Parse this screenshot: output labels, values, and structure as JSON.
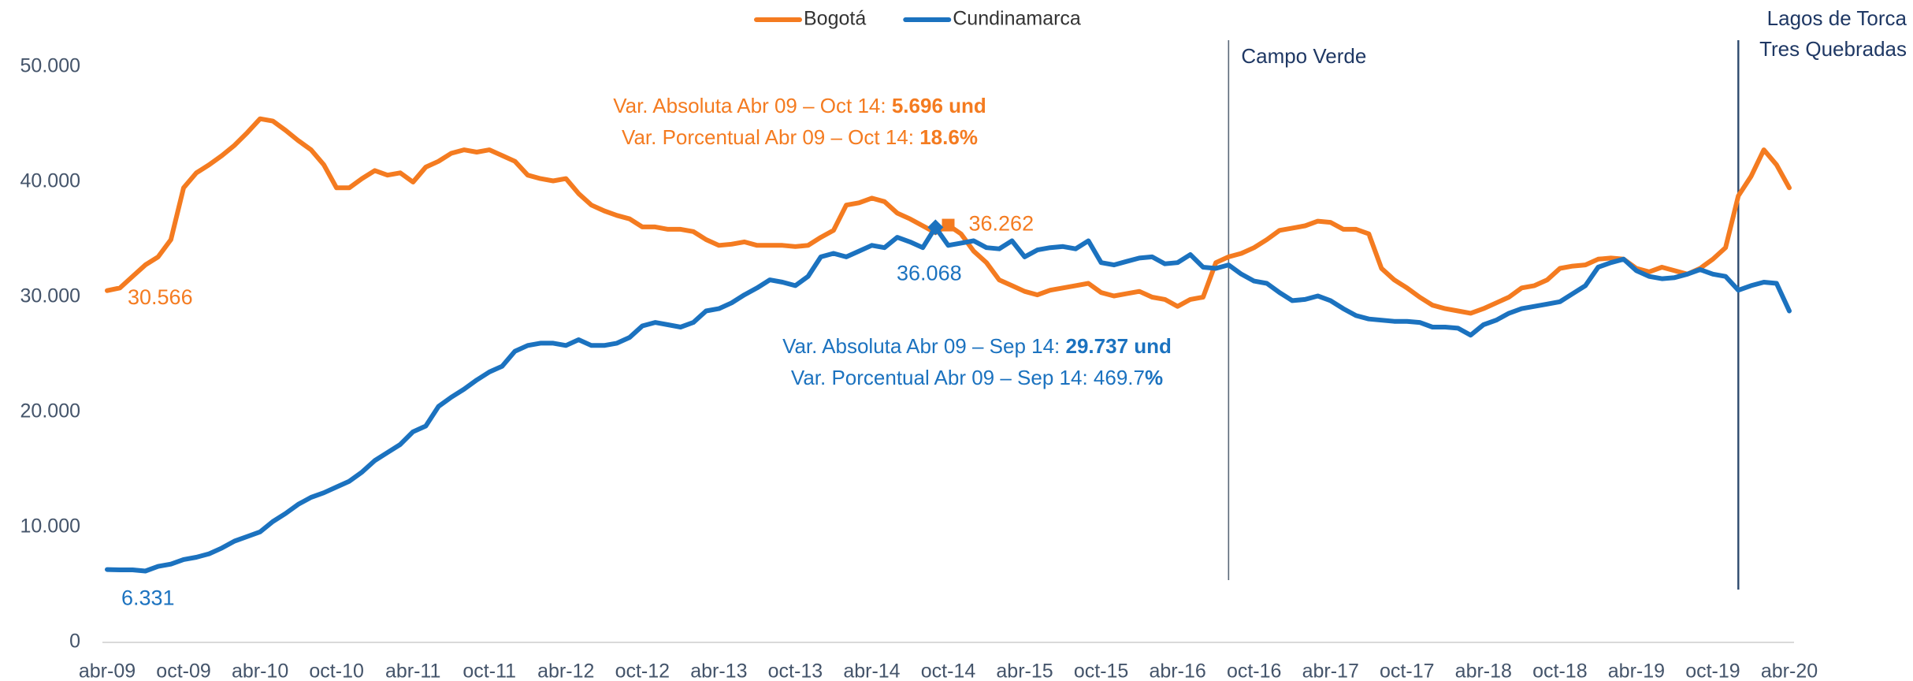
{
  "chart_data": {
    "type": "line",
    "categories": [
      "abr-09",
      null,
      null,
      null,
      null,
      null,
      "oct-09",
      null,
      null,
      null,
      null,
      null,
      "abr-10",
      null,
      null,
      null,
      null,
      null,
      "oct-10",
      null,
      null,
      null,
      null,
      null,
      "abr-11",
      null,
      null,
      null,
      null,
      null,
      "oct-11",
      null,
      null,
      null,
      null,
      null,
      "abr-12",
      null,
      null,
      null,
      null,
      null,
      "oct-12",
      null,
      null,
      null,
      null,
      null,
      "abr-13",
      null,
      null,
      null,
      null,
      null,
      "oct-13",
      null,
      null,
      null,
      null,
      null,
      "abr-14",
      null,
      null,
      null,
      null,
      null,
      "oct-14",
      null,
      null,
      null,
      null,
      null,
      "abr-15",
      null,
      null,
      null,
      null,
      null,
      "oct-15",
      null,
      null,
      null,
      null,
      null,
      "abr-16",
      null,
      null,
      null,
      null,
      null,
      "oct-16",
      null,
      null,
      null,
      null,
      null,
      "abr-17",
      null,
      null,
      null,
      null,
      null,
      "oct-17",
      null,
      null,
      null,
      null,
      null,
      "abr-18",
      null,
      null,
      null,
      null,
      null,
      "oct-18",
      null,
      null,
      null,
      null,
      null,
      "abr-19",
      null,
      null,
      null,
      null,
      null,
      "oct-19",
      null,
      null,
      null,
      null,
      null,
      "abr-20"
    ],
    "series": [
      {
        "name": "Bogotá",
        "color": "#f47b20",
        "values": [
          30566,
          30800,
          31800,
          32800,
          33500,
          35000,
          39500,
          40800,
          41500,
          42300,
          43200,
          44300,
          45500,
          45300,
          44500,
          43600,
          42800,
          41500,
          39500,
          39500,
          40300,
          41000,
          40600,
          40800,
          40000,
          41300,
          41800,
          42500,
          42800,
          42600,
          42800,
          42300,
          41800,
          40600,
          40300,
          40100,
          40300,
          39000,
          38000,
          37500,
          37100,
          36800,
          36100,
          36100,
          35900,
          35900,
          35700,
          35000,
          34500,
          34600,
          34800,
          34500,
          34500,
          34500,
          34400,
          34500,
          35200,
          35800,
          38000,
          38200,
          38600,
          38300,
          37300,
          36800,
          36200,
          35600,
          36262,
          35500,
          34000,
          33000,
          31500,
          31000,
          30500,
          30200,
          30600,
          30800,
          31000,
          31200,
          30400,
          30100,
          30300,
          30500,
          30000,
          29800,
          29200,
          29800,
          30000,
          33000,
          33500,
          33800,
          34300,
          35000,
          35800,
          36000,
          36200,
          36600,
          36500,
          35900,
          35900,
          35500,
          32500,
          31500,
          30800,
          30000,
          29300,
          29000,
          28800,
          28600,
          29000,
          29500,
          30000,
          30800,
          31000,
          31500,
          32500,
          32700,
          32800,
          33300,
          33400,
          33300,
          32500,
          32200,
          32600,
          32300,
          32000,
          32500,
          33300,
          34300,
          38800,
          40500,
          42800,
          41500,
          39500
        ],
        "value_labels": [
          "30.566",
          null,
          null,
          null,
          null,
          null,
          null,
          null,
          null,
          null,
          null,
          null,
          null,
          null,
          null,
          null,
          null,
          null,
          null,
          null,
          null,
          null,
          null,
          null,
          null,
          null,
          null,
          null,
          null,
          null,
          null,
          null,
          null,
          null,
          null,
          null,
          null,
          null,
          null,
          null,
          null,
          null,
          null,
          null,
          null,
          null,
          null,
          null,
          null,
          null,
          null,
          null,
          null,
          null,
          null,
          null,
          null,
          null,
          null,
          null,
          null,
          null,
          null,
          null,
          null,
          null,
          "36.262",
          null,
          null,
          null,
          null,
          null,
          null,
          null,
          null,
          null,
          null,
          null,
          null,
          null,
          null,
          null,
          null,
          null,
          null,
          null,
          null,
          null,
          null,
          null,
          null,
          null,
          null,
          null,
          null,
          null,
          null,
          null,
          null,
          null,
          null,
          null,
          null,
          null,
          null,
          null,
          null,
          null,
          null,
          null,
          null,
          null,
          null,
          null,
          null,
          null,
          null,
          null,
          null,
          null,
          null,
          null,
          null,
          null,
          null,
          null,
          null,
          null,
          null,
          null,
          null,
          null,
          null
        ]
      },
      {
        "name": "Cundinamarca",
        "color": "#1b72bf",
        "values": [
          6331,
          6300,
          6300,
          6200,
          6600,
          6800,
          7200,
          7400,
          7700,
          8200,
          8800,
          9200,
          9600,
          10500,
          11200,
          12000,
          12600,
          13000,
          13500,
          14000,
          14800,
          15800,
          16500,
          17200,
          18300,
          18800,
          20500,
          21300,
          22000,
          22800,
          23500,
          24000,
          25300,
          25800,
          26000,
          26000,
          25800,
          26300,
          25800,
          25800,
          26000,
          26500,
          27500,
          27800,
          27600,
          27400,
          27800,
          28800,
          29000,
          29500,
          30200,
          30800,
          31500,
          31300,
          31000,
          31800,
          33500,
          33800,
          33500,
          34000,
          34500,
          34300,
          35200,
          34800,
          34300,
          36068,
          34500,
          34700,
          34900,
          34300,
          34200,
          34900,
          33500,
          34100,
          34300,
          34400,
          34200,
          34900,
          33000,
          32800,
          33100,
          33400,
          33500,
          32900,
          33000,
          33700,
          32600,
          32500,
          32800,
          32000,
          31400,
          31200,
          30400,
          29700,
          29800,
          30100,
          29700,
          29000,
          28400,
          28100,
          28000,
          27900,
          27900,
          27800,
          27400,
          27400,
          27300,
          26700,
          27600,
          28000,
          28600,
          29000,
          29200,
          29400,
          29600,
          30300,
          31000,
          32600,
          33000,
          33300,
          32300,
          31800,
          31600,
          31700,
          32000,
          32400,
          32000,
          31800,
          30600,
          31000,
          31300,
          31200,
          28800
        ],
        "value_labels": [
          "6.331",
          null,
          null,
          null,
          null,
          null,
          null,
          null,
          null,
          null,
          null,
          null,
          null,
          null,
          null,
          null,
          null,
          null,
          null,
          null,
          null,
          null,
          null,
          null,
          null,
          null,
          null,
          null,
          null,
          null,
          null,
          null,
          null,
          null,
          null,
          null,
          null,
          null,
          null,
          null,
          null,
          null,
          null,
          null,
          null,
          null,
          null,
          null,
          null,
          null,
          null,
          null,
          null,
          null,
          null,
          null,
          null,
          null,
          null,
          null,
          null,
          null,
          null,
          null,
          null,
          "36.068",
          null,
          null,
          null,
          null,
          null,
          null,
          null,
          null,
          null,
          null,
          null,
          null,
          null,
          null,
          null,
          null,
          null,
          null,
          null,
          null,
          null,
          null,
          null,
          null,
          null,
          null,
          null,
          null,
          null,
          null,
          null,
          null,
          null,
          null,
          null,
          null,
          null,
          null,
          null,
          null,
          null,
          null,
          null,
          null,
          null,
          null,
          null,
          null,
          null,
          null,
          null,
          null,
          null,
          null,
          null,
          null,
          null,
          null,
          null,
          null,
          null,
          null,
          null,
          null,
          null,
          null,
          null
        ]
      }
    ],
    "ylim": [
      0,
      50000
    ],
    "yticks": [
      0,
      {
        "value": 10000,
        "label": "10.000"
      },
      {
        "value": 20000,
        "label": "20.000"
      },
      {
        "value": 30000,
        "label": "30.000"
      },
      {
        "value": 40000,
        "label": "40.000"
      },
      {
        "value": 50000,
        "label": "50.000"
      }
    ],
    "grid": false,
    "legend": "top",
    "annotations": [
      {
        "series": 0,
        "lines": [
          {
            "text": "Var. Absoluta Abr 09 – Oct 14: ",
            "strong": "5.696 und"
          },
          {
            "text": "Var. Porcentual Abr 09 – Oct 14: ",
            "strong": "18.6%"
          }
        ]
      },
      {
        "series": 1,
        "lines": [
          {
            "text": "Var. Absoluta Abr 09 – Sep 14: ",
            "strong": "29.737 und"
          },
          {
            "text": "Var. Porcentual Abr 09 – Sep 14: 469.7",
            "strong": "%"
          }
        ]
      }
    ],
    "markers": [
      {
        "x_index": 88,
        "label": [
          "Campo Verde"
        ]
      },
      {
        "x_index": 128,
        "label": [
          "Lagos de Torca",
          "Tres Quebradas"
        ]
      }
    ]
  }
}
